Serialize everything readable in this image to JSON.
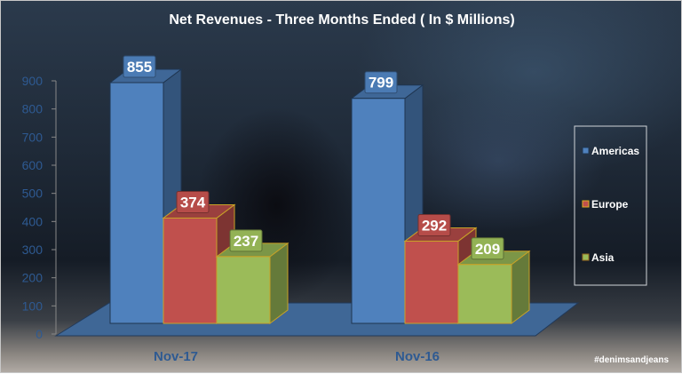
{
  "chart_data": {
    "type": "bar",
    "title": "Net Revenues - Three Months Ended ( In $ Millions)",
    "categories": [
      "Nov-17",
      "Nov-16"
    ],
    "series": [
      {
        "name": "Americas",
        "values": [
          855,
          799
        ],
        "color": "#4f81bd"
      },
      {
        "name": "Europe",
        "values": [
          374,
          292
        ],
        "color": "#c0504d"
      },
      {
        "name": "Asia",
        "values": [
          237,
          209
        ],
        "color": "#9bbb59"
      }
    ],
    "ylim": [
      0,
      900
    ],
    "yticks": [
      "0",
      "100",
      "200",
      "300",
      "400",
      "500",
      "600",
      "700",
      "800",
      "900"
    ],
    "xlabel": "",
    "ylabel": "",
    "legend": "right",
    "grid": false
  },
  "watermark": "#denimsandjeans"
}
